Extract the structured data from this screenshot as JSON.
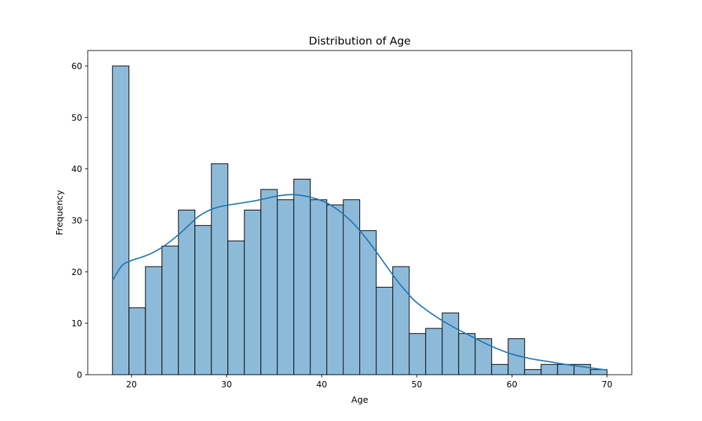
{
  "chart_data": {
    "type": "bar",
    "title": "Distribution of Age",
    "xlabel": "Age",
    "ylabel": "Frequency",
    "xlim": [
      15.4,
      72.6
    ],
    "ylim": [
      0,
      63
    ],
    "xticks": [
      20,
      30,
      40,
      50,
      60,
      70
    ],
    "yticks": [
      0,
      10,
      20,
      30,
      40,
      50,
      60
    ],
    "grid": false,
    "legend": "none",
    "bin_start": 18,
    "bin_width": 1.7333,
    "values": [
      60,
      13,
      21,
      25,
      32,
      29,
      41,
      26,
      32,
      36,
      34,
      38,
      34,
      33,
      34,
      28,
      17,
      21,
      8,
      9,
      12,
      8,
      7,
      2,
      7,
      1,
      2,
      2,
      2,
      1
    ],
    "kde": {
      "x": [
        18,
        19,
        20,
        21,
        22,
        23,
        24,
        25,
        26,
        27,
        28,
        29,
        30,
        31,
        32,
        33,
        34,
        35,
        36,
        37,
        38,
        39,
        40,
        41,
        42,
        43,
        44,
        45,
        46,
        47,
        48,
        49,
        50,
        52,
        54,
        56,
        58,
        60,
        62,
        64,
        66,
        68,
        70
      ],
      "y": [
        18.3,
        21.2,
        22.2,
        22.8,
        23.5,
        24.5,
        25.8,
        27.3,
        29.0,
        30.7,
        31.8,
        32.5,
        32.9,
        33.2,
        33.5,
        33.8,
        34.2,
        34.6,
        34.9,
        35.0,
        34.8,
        34.4,
        33.8,
        32.9,
        31.6,
        30.0,
        28.0,
        25.7,
        23.2,
        20.6,
        18.1,
        15.9,
        14.0,
        11.3,
        9.1,
        7.2,
        5.4,
        4.0,
        3.1,
        2.5,
        1.9,
        1.4,
        0.9
      ]
    },
    "colors": {
      "bar_fill": "#8ebad9",
      "bar_edge": "#000000",
      "kde_line": "#1f77b4"
    }
  }
}
